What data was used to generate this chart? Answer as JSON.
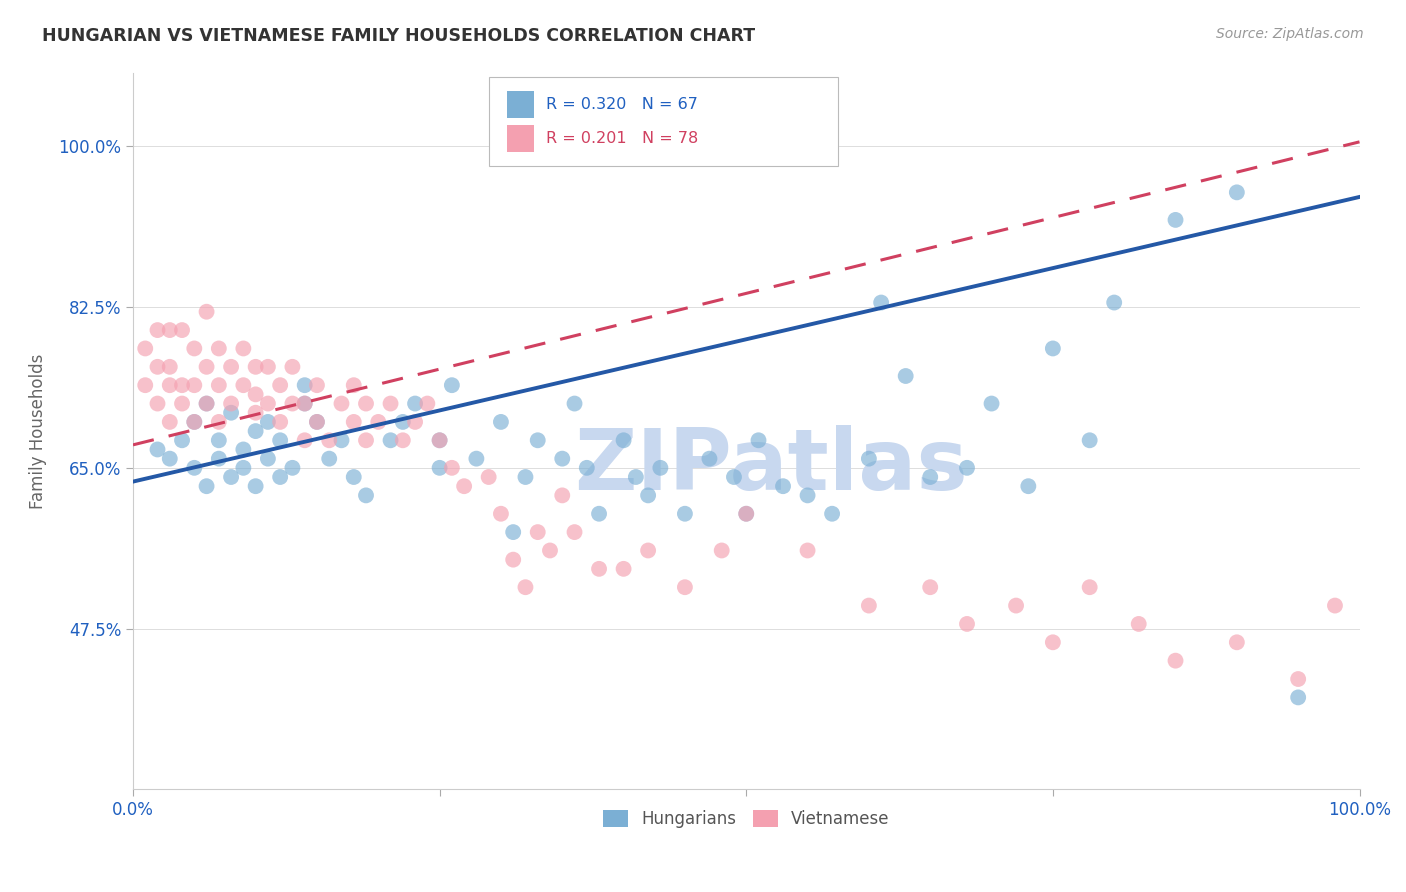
{
  "title": "HUNGARIAN VS VIETNAMESE FAMILY HOUSEHOLDS CORRELATION CHART",
  "source": "Source: ZipAtlas.com",
  "ylabel": "Family Households",
  "xlim": [
    0.0,
    1.0
  ],
  "ylim": [
    0.3,
    1.08
  ],
  "ytick_vals": [
    0.475,
    0.65,
    0.825,
    1.0
  ],
  "ytick_labels": [
    "47.5%",
    "65.0%",
    "82.5%",
    "100.0%"
  ],
  "hungarian_color": "#7bafd4",
  "vietnamese_color": "#f4a0b0",
  "hungarian_line_color": "#2458a6",
  "vietnamese_line_color": "#d04060",
  "watermark_text": "ZIPatlas",
  "watermark_color": "#c8d8ef",
  "hun_line_y0": 0.635,
  "hun_line_y1": 0.945,
  "viet_line_y0": 0.675,
  "viet_line_y1": 1.005,
  "hungarian_x": [
    0.02,
    0.03,
    0.04,
    0.05,
    0.05,
    0.06,
    0.06,
    0.07,
    0.07,
    0.08,
    0.08,
    0.09,
    0.09,
    0.1,
    0.1,
    0.11,
    0.11,
    0.12,
    0.12,
    0.13,
    0.14,
    0.14,
    0.15,
    0.16,
    0.17,
    0.18,
    0.19,
    0.21,
    0.22,
    0.23,
    0.25,
    0.25,
    0.26,
    0.28,
    0.3,
    0.31,
    0.32,
    0.33,
    0.35,
    0.36,
    0.37,
    0.38,
    0.4,
    0.41,
    0.42,
    0.43,
    0.45,
    0.47,
    0.49,
    0.5,
    0.51,
    0.53,
    0.55,
    0.57,
    0.6,
    0.61,
    0.63,
    0.65,
    0.68,
    0.7,
    0.73,
    0.75,
    0.78,
    0.8,
    0.85,
    0.9,
    0.95
  ],
  "hungarian_y": [
    0.67,
    0.66,
    0.68,
    0.65,
    0.7,
    0.63,
    0.72,
    0.66,
    0.68,
    0.64,
    0.71,
    0.65,
    0.67,
    0.63,
    0.69,
    0.66,
    0.7,
    0.64,
    0.68,
    0.65,
    0.72,
    0.74,
    0.7,
    0.66,
    0.68,
    0.64,
    0.62,
    0.68,
    0.7,
    0.72,
    0.68,
    0.65,
    0.74,
    0.66,
    0.7,
    0.58,
    0.64,
    0.68,
    0.66,
    0.72,
    0.65,
    0.6,
    0.68,
    0.64,
    0.62,
    0.65,
    0.6,
    0.66,
    0.64,
    0.6,
    0.68,
    0.63,
    0.62,
    0.6,
    0.66,
    0.83,
    0.75,
    0.64,
    0.65,
    0.72,
    0.63,
    0.78,
    0.68,
    0.83,
    0.92,
    0.95,
    0.4
  ],
  "vietnamese_x": [
    0.01,
    0.01,
    0.02,
    0.02,
    0.02,
    0.03,
    0.03,
    0.03,
    0.03,
    0.04,
    0.04,
    0.04,
    0.05,
    0.05,
    0.05,
    0.06,
    0.06,
    0.06,
    0.07,
    0.07,
    0.07,
    0.08,
    0.08,
    0.09,
    0.09,
    0.1,
    0.1,
    0.1,
    0.11,
    0.11,
    0.12,
    0.12,
    0.13,
    0.13,
    0.14,
    0.14,
    0.15,
    0.15,
    0.16,
    0.17,
    0.18,
    0.18,
    0.19,
    0.19,
    0.2,
    0.21,
    0.22,
    0.23,
    0.24,
    0.25,
    0.26,
    0.27,
    0.29,
    0.3,
    0.31,
    0.32,
    0.33,
    0.34,
    0.35,
    0.36,
    0.38,
    0.4,
    0.42,
    0.45,
    0.48,
    0.5,
    0.55,
    0.6,
    0.65,
    0.68,
    0.72,
    0.75,
    0.78,
    0.82,
    0.85,
    0.9,
    0.95,
    0.98
  ],
  "vietnamese_y": [
    0.78,
    0.74,
    0.8,
    0.72,
    0.76,
    0.8,
    0.74,
    0.7,
    0.76,
    0.74,
    0.8,
    0.72,
    0.78,
    0.74,
    0.7,
    0.82,
    0.76,
    0.72,
    0.74,
    0.78,
    0.7,
    0.76,
    0.72,
    0.74,
    0.78,
    0.73,
    0.71,
    0.76,
    0.72,
    0.76,
    0.74,
    0.7,
    0.72,
    0.76,
    0.68,
    0.72,
    0.7,
    0.74,
    0.68,
    0.72,
    0.7,
    0.74,
    0.68,
    0.72,
    0.7,
    0.72,
    0.68,
    0.7,
    0.72,
    0.68,
    0.65,
    0.63,
    0.64,
    0.6,
    0.55,
    0.52,
    0.58,
    0.56,
    0.62,
    0.58,
    0.54,
    0.54,
    0.56,
    0.52,
    0.56,
    0.6,
    0.56,
    0.5,
    0.52,
    0.48,
    0.5,
    0.46,
    0.52,
    0.48,
    0.44,
    0.46,
    0.42,
    0.5
  ]
}
